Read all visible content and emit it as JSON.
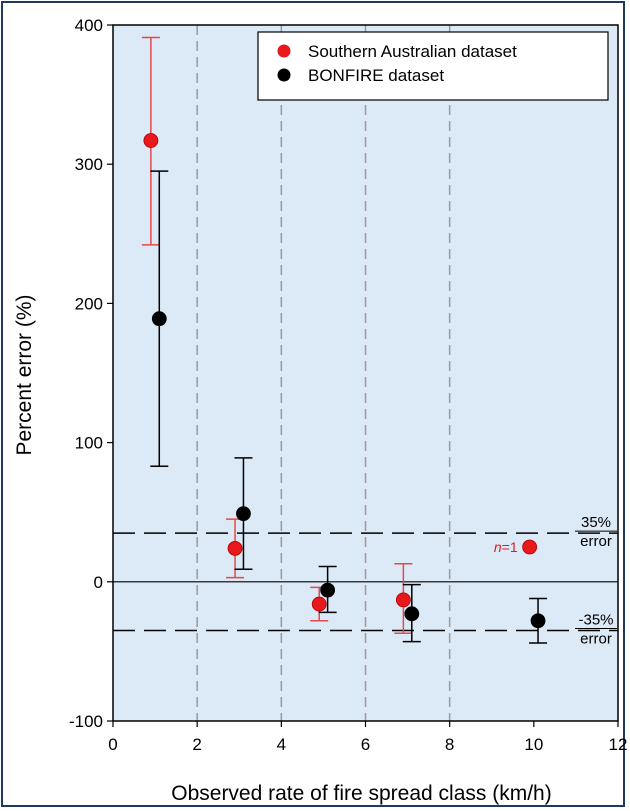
{
  "chart_data": {
    "type": "scatter",
    "xlabel": "Observed rate of fire spread class (km/h)",
    "ylabel": "Percent error (%)",
    "xlim": [
      0,
      12
    ],
    "ylim": [
      -100,
      400
    ],
    "x_ticks": [
      "0",
      "2",
      "4",
      "6",
      "8",
      "10",
      "12"
    ],
    "y_ticks": [
      "-100",
      "0",
      "100",
      "200",
      "300",
      "400"
    ],
    "x_tick_values": [
      0,
      2,
      4,
      6,
      8,
      10,
      12
    ],
    "y_tick_values": [
      -100,
      0,
      100,
      200,
      300,
      400
    ],
    "vertical_gridlines": [
      2,
      4,
      6,
      8
    ],
    "grid": "vertical dashed",
    "background_color": "#dce9f7",
    "legend_position": "top-right",
    "series": [
      {
        "name": "Southern Australian dataset",
        "color": "#e8191d",
        "error_bar_color": "#e14a4a",
        "points": [
          {
            "x": 0.9,
            "y": 317,
            "err_low": 242,
            "err_high": 391
          },
          {
            "x": 2.9,
            "y": 24,
            "err_low": 3,
            "err_high": 45
          },
          {
            "x": 4.9,
            "y": -16,
            "err_low": -28,
            "err_high": -4
          },
          {
            "x": 6.9,
            "y": -13,
            "err_low": -37,
            "err_high": 13
          },
          {
            "x": 9.9,
            "y": 25
          }
        ]
      },
      {
        "name": "BONFIRE dataset",
        "color": "#000000",
        "error_bar_color": "#000000",
        "points": [
          {
            "x": 1.1,
            "y": 189,
            "err_low": 83,
            "err_high": 295
          },
          {
            "x": 3.1,
            "y": 49,
            "err_low": 9,
            "err_high": 89
          },
          {
            "x": 5.1,
            "y": -6,
            "err_low": -22,
            "err_high": 11
          },
          {
            "x": 7.1,
            "y": -23,
            "err_low": -43,
            "err_high": -2
          },
          {
            "x": 10.1,
            "y": -28,
            "err_low": -44,
            "err_high": -12
          }
        ]
      }
    ],
    "reference_lines": [
      {
        "y": 0,
        "style": "solid"
      },
      {
        "y": 35,
        "style": "dashed",
        "label_top": "35%",
        "label_bottom": "error"
      },
      {
        "y": -35,
        "style": "dashed",
        "label_top": "-35%",
        "label_bottom": "error"
      }
    ],
    "annotations": [
      {
        "series": 0,
        "point": 4,
        "prefix": "n",
        "text": "=1"
      }
    ]
  }
}
